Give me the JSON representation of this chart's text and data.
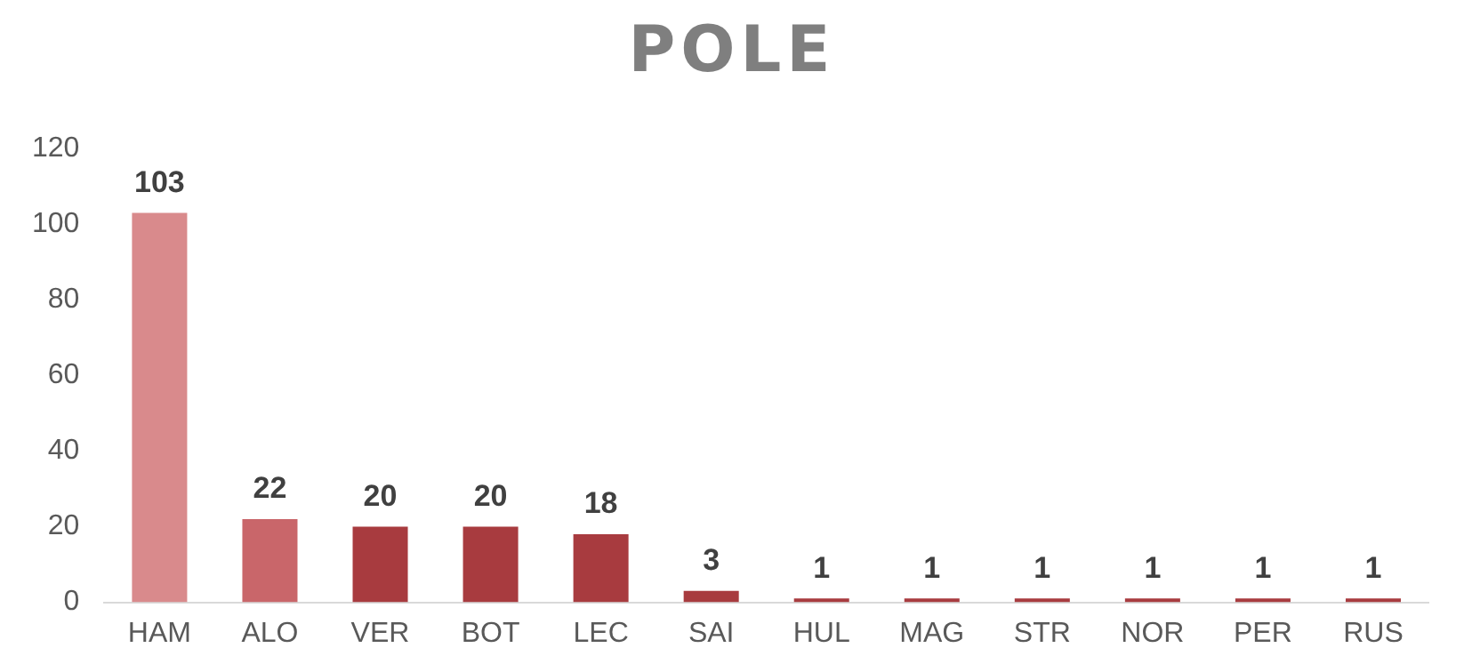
{
  "chart_data": {
    "type": "bar",
    "title": "POLE",
    "categories": [
      "HAM",
      "ALO",
      "VER",
      "BOT",
      "LEC",
      "SAI",
      "HUL",
      "MAG",
      "STR",
      "NOR",
      "PER",
      "RUS"
    ],
    "values": [
      103,
      22,
      20,
      20,
      18,
      3,
      1,
      1,
      1,
      1,
      1,
      1
    ],
    "colors": [
      "#d98a8c",
      "#c9666a",
      "#a83b3f",
      "#a83b3f",
      "#a83b3f",
      "#a83b3f",
      "#a83b3f",
      "#a83b3f",
      "#a83b3f",
      "#a83b3f",
      "#a83b3f",
      "#a83b3f"
    ],
    "ylim": [
      0,
      120
    ],
    "yticks": [
      0,
      20,
      40,
      60,
      80,
      100,
      120
    ],
    "grid": false,
    "legend": false,
    "data_labels": true
  }
}
